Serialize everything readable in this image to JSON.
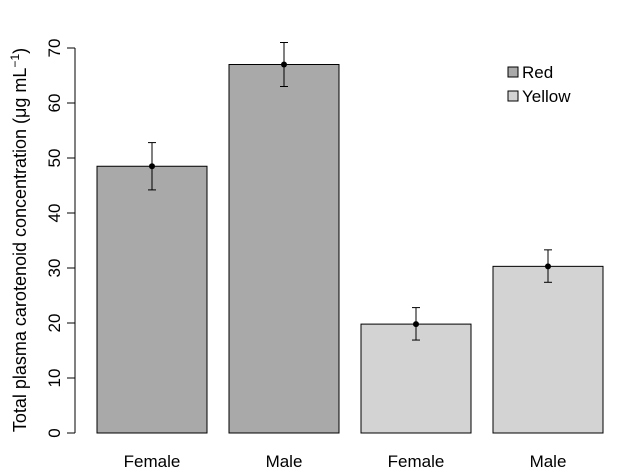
{
  "chart_data": {
    "type": "bar",
    "categories": [
      "Female",
      "Male",
      "Female",
      "Male"
    ],
    "groups": [
      "Red",
      "Red",
      "Yellow",
      "Yellow"
    ],
    "values": [
      48.5,
      67.0,
      19.8,
      30.3
    ],
    "error_low": [
      44.2,
      63.0,
      16.9,
      27.4
    ],
    "error_high": [
      52.8,
      71.0,
      22.8,
      33.3
    ],
    "title": "",
    "xlabel": "",
    "ylabel_prefix": "Total plasma carotenoid concentration (μg mL",
    "ylabel_sup": "−1",
    "ylabel_suffix": ")",
    "ylim": [
      0,
      70
    ],
    "yticks": [
      "0",
      "10",
      "20",
      "30",
      "40",
      "50",
      "60",
      "70"
    ],
    "grid": false,
    "legend_position": "top-right",
    "legend": [
      {
        "label": "Red",
        "color": "#a9a9a9"
      },
      {
        "label": "Yellow",
        "color": "#d3d3d3"
      }
    ],
    "bar_colors": [
      "#a9a9a9",
      "#a9a9a9",
      "#d3d3d3",
      "#d3d3d3"
    ]
  }
}
